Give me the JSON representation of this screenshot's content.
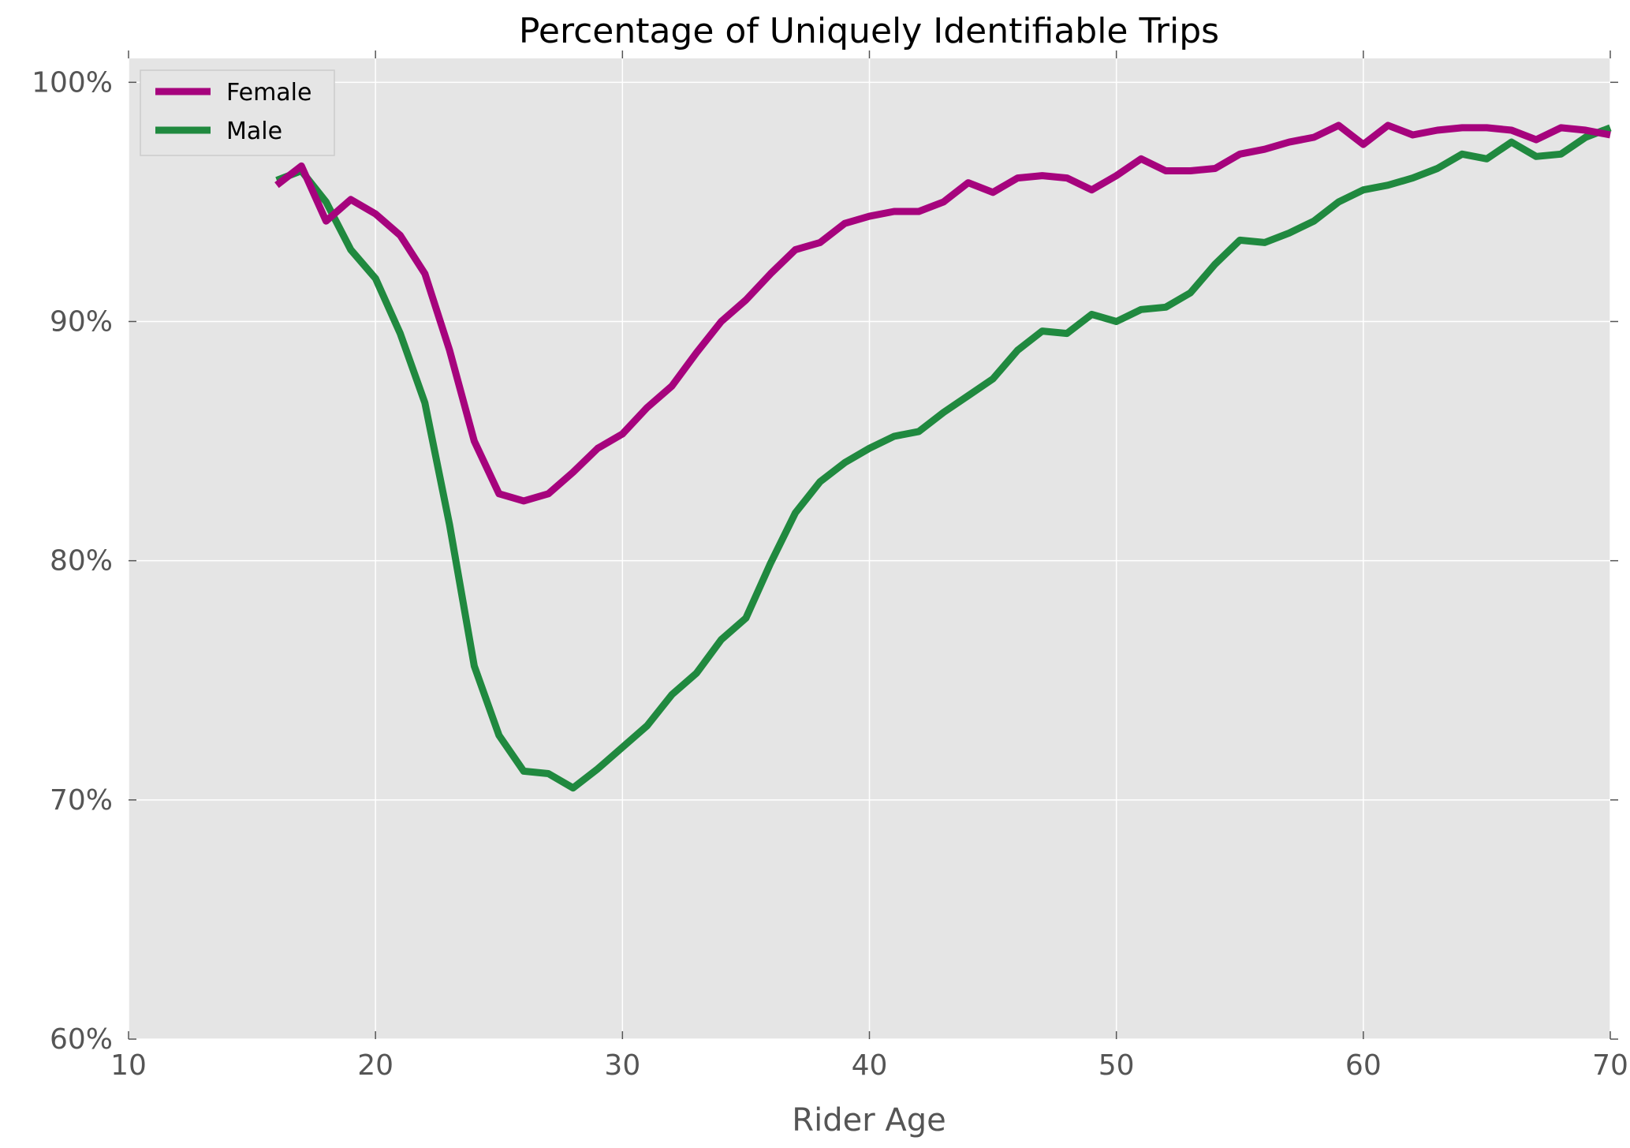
{
  "chart_data": {
    "type": "line",
    "title": "Percentage of Uniquely Identifiable Trips",
    "xlabel": "Rider Age",
    "ylabel": "",
    "xlim": [
      10,
      70
    ],
    "ylim": [
      0.6,
      1.01
    ],
    "x_ticks": [
      10,
      20,
      30,
      40,
      50,
      60,
      70
    ],
    "x_tick_labels": [
      "10",
      "20",
      "30",
      "40",
      "50",
      "60",
      "70"
    ],
    "y_ticks": [
      0.6,
      0.7,
      0.8,
      0.9,
      1.0
    ],
    "y_tick_labels": [
      "60%",
      "70%",
      "80%",
      "90%",
      "100%"
    ],
    "grid": true,
    "legend_position": "top-left",
    "x": [
      16,
      17,
      18,
      19,
      20,
      21,
      22,
      23,
      24,
      25,
      26,
      27,
      28,
      29,
      30,
      31,
      32,
      33,
      34,
      35,
      36,
      37,
      38,
      39,
      40,
      41,
      42,
      43,
      44,
      45,
      46,
      47,
      48,
      49,
      50,
      51,
      52,
      53,
      54,
      55,
      56,
      57,
      58,
      59,
      60,
      61,
      62,
      63,
      64,
      65,
      66,
      67,
      68,
      69,
      70
    ],
    "series": [
      {
        "name": "Female",
        "color": "#a6037d",
        "values": [
          0.957,
          0.965,
          0.942,
          0.951,
          0.945,
          0.936,
          0.92,
          0.888,
          0.85,
          0.828,
          0.825,
          0.828,
          0.837,
          0.847,
          0.853,
          0.864,
          0.873,
          0.887,
          0.9,
          0.909,
          0.92,
          0.93,
          0.933,
          0.941,
          0.944,
          0.946,
          0.946,
          0.95,
          0.958,
          0.954,
          0.96,
          0.961,
          0.96,
          0.955,
          0.961,
          0.968,
          0.963,
          0.963,
          0.964,
          0.97,
          0.972,
          0.975,
          0.977,
          0.982,
          0.974,
          0.982,
          0.978,
          0.98,
          0.981,
          0.981,
          0.98,
          0.976,
          0.981,
          0.98,
          0.978
        ]
      },
      {
        "name": "Male",
        "color": "#20893f",
        "values": [
          0.959,
          0.963,
          0.95,
          0.93,
          0.918,
          0.895,
          0.866,
          0.815,
          0.756,
          0.727,
          0.712,
          0.711,
          0.705,
          0.713,
          0.722,
          0.731,
          0.744,
          0.753,
          0.767,
          0.776,
          0.799,
          0.82,
          0.833,
          0.841,
          0.847,
          0.852,
          0.854,
          0.862,
          0.869,
          0.876,
          0.888,
          0.896,
          0.895,
          0.903,
          0.9,
          0.905,
          0.906,
          0.912,
          0.924,
          0.934,
          0.933,
          0.937,
          0.942,
          0.95,
          0.955,
          0.957,
          0.96,
          0.964,
          0.97,
          0.968,
          0.975,
          0.969,
          0.97,
          0.977,
          0.981
        ]
      }
    ]
  },
  "colors": {
    "plot_background": "#e5e5e5",
    "grid": "#ffffff",
    "axis_text": "#555555",
    "female": "#a6037d",
    "male": "#20893f"
  }
}
